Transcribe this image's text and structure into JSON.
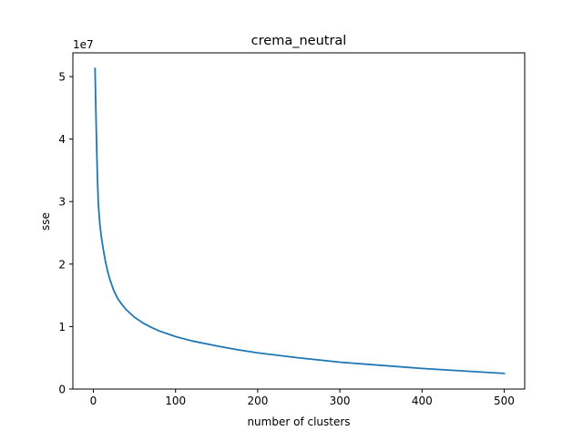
{
  "chart_data": {
    "type": "line",
    "title": "crema_neutral",
    "xlabel": "number of clusters",
    "ylabel": "sse",
    "y_offset_label": "1e7",
    "xlim": [
      -24.95,
      524.95
    ],
    "ylim": [
      0,
      53800000.0
    ],
    "x_ticks": [
      0,
      100,
      200,
      300,
      400,
      500
    ],
    "x_tick_labels": [
      "0",
      "100",
      "200",
      "300",
      "400",
      "500"
    ],
    "y_ticks": [
      0,
      10000000,
      20000000,
      30000000,
      40000000,
      50000000
    ],
    "y_tick_labels": [
      "0",
      "1",
      "2",
      "3",
      "4",
      "5"
    ],
    "grid": false,
    "line_color": "#1f77b4",
    "series": [
      {
        "x": [
          2,
          3,
          4,
          5,
          6,
          8,
          10,
          12,
          15,
          18,
          20,
          25,
          30,
          35,
          40,
          50,
          60,
          70,
          80,
          100,
          120,
          150,
          175,
          200,
          250,
          300,
          350,
          400,
          450,
          500
        ],
        "values": [
          51300000,
          44800000,
          38700000,
          33600000,
          29700000,
          26200000,
          24100000,
          22400000,
          20200000,
          18500000,
          17600000,
          15700000,
          14400000,
          13500000,
          12700000,
          11500000,
          10600000,
          9900000,
          9300000,
          8400000,
          7700000,
          6900000,
          6300000,
          5800000,
          5000000,
          4300000,
          3800000,
          3300000,
          2900000,
          2500000
        ]
      }
    ]
  }
}
